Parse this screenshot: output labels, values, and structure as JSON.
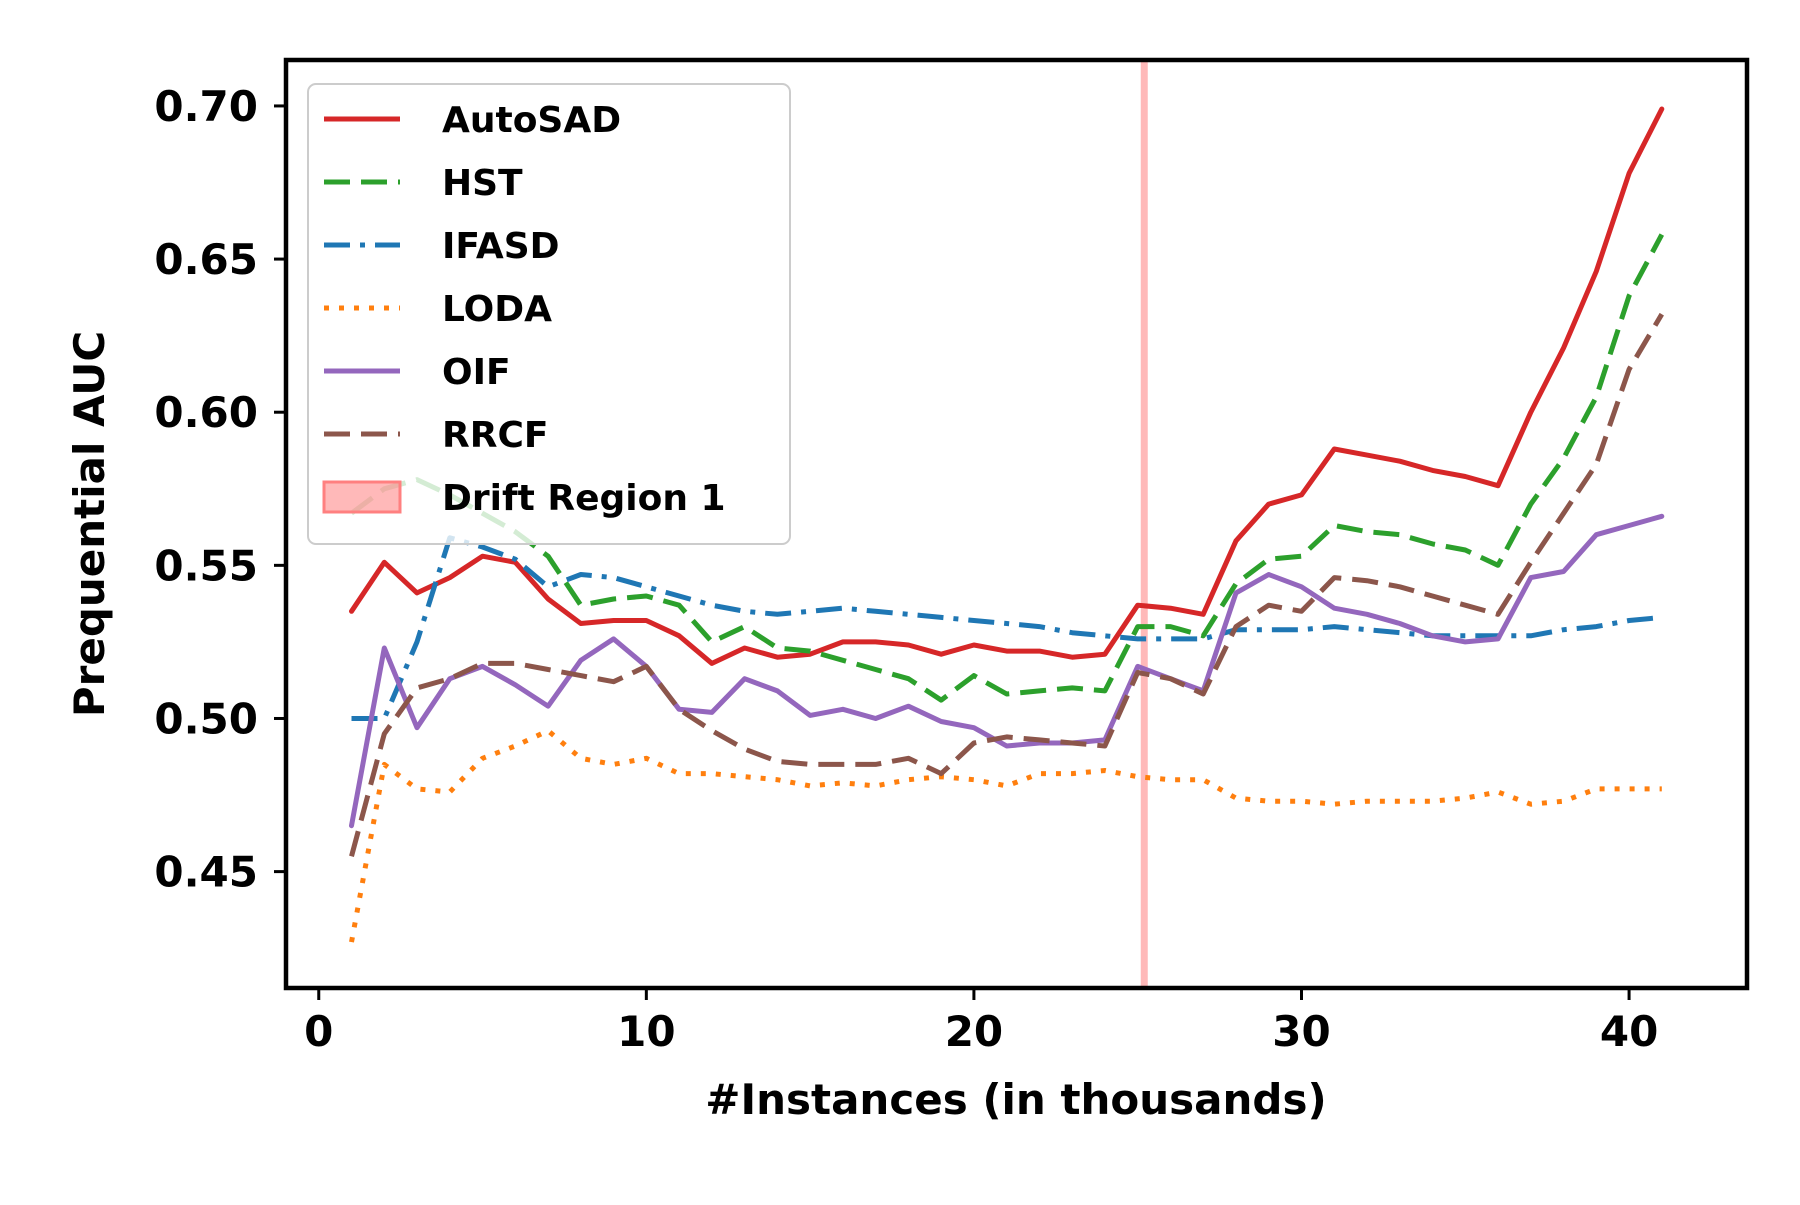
{
  "chart_data": {
    "type": "line",
    "title": "",
    "xlabel": "#Instances (in thousands)",
    "ylabel": "Prequential AUC",
    "xlim": [
      -1,
      43.6
    ],
    "ylim": [
      0.412,
      0.715
    ],
    "xticks": [
      0,
      10,
      20,
      30,
      40
    ],
    "yticks": [
      0.45,
      0.5,
      0.55,
      0.6,
      0.65,
      0.7
    ],
    "grid": false,
    "legend_position": "top-left",
    "x": [
      1,
      2,
      3,
      4,
      5,
      6,
      7,
      8,
      9,
      10,
      11,
      12,
      13,
      14,
      15,
      16,
      17,
      18,
      19,
      20,
      21,
      22,
      23,
      24,
      25,
      26,
      27,
      28,
      29,
      30,
      31,
      32,
      33,
      34,
      35,
      36,
      37,
      38,
      39,
      40,
      41
    ],
    "series": [
      {
        "name": "AutoSAD",
        "color": "#d62728",
        "dash": "solid",
        "values": [
          0.535,
          0.551,
          0.541,
          0.546,
          0.553,
          0.551,
          0.539,
          0.531,
          0.532,
          0.532,
          0.527,
          0.518,
          0.523,
          0.52,
          0.521,
          0.525,
          0.525,
          0.524,
          0.521,
          0.524,
          0.522,
          0.522,
          0.52,
          0.521,
          0.537,
          0.536,
          0.534,
          0.558,
          0.57,
          0.573,
          0.588,
          0.586,
          0.584,
          0.581,
          0.579,
          0.576,
          0.6,
          0.621,
          0.646,
          0.678,
          0.699
        ]
      },
      {
        "name": "HST",
        "color": "#2ca02c",
        "dash": "dashed",
        "values": [
          0.567,
          0.575,
          0.578,
          0.573,
          0.567,
          0.561,
          0.553,
          0.537,
          0.539,
          0.54,
          0.537,
          0.525,
          0.53,
          0.523,
          0.522,
          0.519,
          0.516,
          0.513,
          0.506,
          0.514,
          0.508,
          0.509,
          0.51,
          0.509,
          0.53,
          0.53,
          0.527,
          0.544,
          0.552,
          0.553,
          0.563,
          0.561,
          0.56,
          0.557,
          0.555,
          0.55,
          0.57,
          0.585,
          0.605,
          0.638,
          0.658
        ]
      },
      {
        "name": "IFASD",
        "color": "#1f77b4",
        "dash": "dashdot",
        "values": [
          0.5,
          0.5,
          0.525,
          0.559,
          0.556,
          0.552,
          0.543,
          0.547,
          0.546,
          0.543,
          0.54,
          0.537,
          0.535,
          0.534,
          0.535,
          0.536,
          0.535,
          0.534,
          0.533,
          0.532,
          0.531,
          0.53,
          0.528,
          0.527,
          0.526,
          0.526,
          0.526,
          0.529,
          0.529,
          0.529,
          0.53,
          0.529,
          0.528,
          0.527,
          0.527,
          0.527,
          0.527,
          0.529,
          0.53,
          0.532,
          0.533
        ]
      },
      {
        "name": "LODA",
        "color": "#ff7f0e",
        "dash": "dotted",
        "values": [
          0.427,
          0.485,
          0.477,
          0.476,
          0.487,
          0.491,
          0.496,
          0.487,
          0.485,
          0.487,
          0.482,
          0.482,
          0.481,
          0.48,
          0.478,
          0.479,
          0.478,
          0.48,
          0.481,
          0.48,
          0.478,
          0.482,
          0.482,
          0.483,
          0.481,
          0.48,
          0.48,
          0.474,
          0.473,
          0.473,
          0.472,
          0.473,
          0.473,
          0.473,
          0.474,
          0.476,
          0.472,
          0.473,
          0.477,
          0.477,
          0.477
        ]
      },
      {
        "name": "OIF",
        "color": "#9467bd",
        "dash": "solid",
        "values": [
          0.465,
          0.523,
          0.497,
          0.513,
          0.517,
          0.511,
          0.504,
          0.519,
          0.526,
          0.517,
          0.503,
          0.502,
          0.513,
          0.509,
          0.501,
          0.503,
          0.5,
          0.504,
          0.499,
          0.497,
          0.491,
          0.492,
          0.492,
          0.493,
          0.517,
          0.513,
          0.509,
          0.541,
          0.547,
          0.543,
          0.536,
          0.534,
          0.531,
          0.527,
          0.525,
          0.526,
          0.546,
          0.548,
          0.56,
          0.563,
          0.566
        ]
      },
      {
        "name": "RRCF",
        "color": "#8c564b",
        "dash": "dashed",
        "values": [
          0.455,
          0.495,
          0.51,
          0.513,
          0.518,
          0.518,
          0.516,
          0.514,
          0.512,
          0.517,
          0.503,
          0.496,
          0.49,
          0.486,
          0.485,
          0.485,
          0.485,
          0.487,
          0.482,
          0.492,
          0.494,
          0.493,
          0.492,
          0.491,
          0.515,
          0.513,
          0.508,
          0.53,
          0.537,
          0.535,
          0.546,
          0.545,
          0.543,
          0.54,
          0.537,
          0.534,
          0.551,
          0.567,
          0.583,
          0.614,
          0.632
        ]
      }
    ],
    "drift_region": {
      "name": "Drift Region 1",
      "x": 25.2,
      "color": "#ff8080"
    }
  }
}
